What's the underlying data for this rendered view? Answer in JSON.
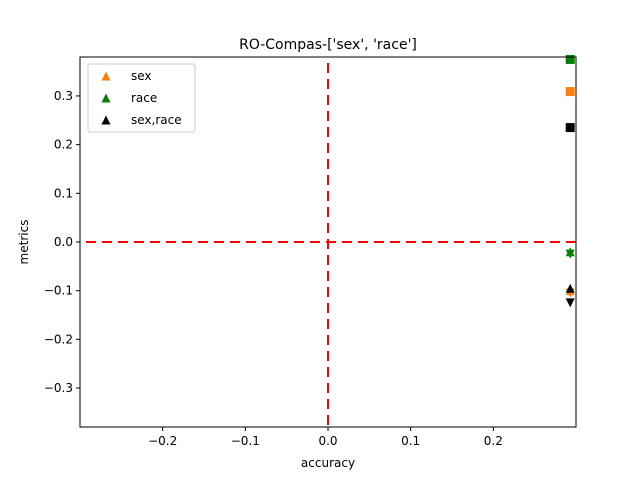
{
  "chart_data": {
    "type": "scatter",
    "title": "RO-Compas-['sex', 'race']",
    "xlabel": "accuracy",
    "ylabel": "metrics",
    "xlim": [
      -0.3,
      0.3
    ],
    "ylim": [
      -0.38,
      0.38
    ],
    "xticks": [
      -0.2,
      -0.1,
      0.0,
      0.1,
      0.2
    ],
    "xtick_labels": [
      "−0.2",
      "−0.1",
      "0.0",
      "0.1",
      "0.2"
    ],
    "yticks": [
      -0.3,
      -0.2,
      -0.1,
      0.0,
      0.1,
      0.2,
      0.3
    ],
    "ytick_labels": [
      "−0.3",
      "−0.2",
      "−0.1",
      "0.0",
      "0.1",
      "0.2",
      "0.3"
    ],
    "reference_lines": [
      {
        "orientation": "horizontal",
        "value": 0.0,
        "color": "#ff0000",
        "style": "dashed"
      },
      {
        "orientation": "vertical",
        "value": 0.0,
        "color": "#ff0000",
        "style": "dashed"
      }
    ],
    "legend": {
      "placement": "top-left",
      "entries": [
        {
          "label": "sex",
          "color": "#ff7f0e",
          "marker": "triangle-up"
        },
        {
          "label": "race",
          "color": "#008000",
          "marker": "triangle-up"
        },
        {
          "label": "sex,race",
          "color": "#000000",
          "marker": "triangle-up"
        }
      ]
    },
    "series": [
      {
        "name": "sex",
        "color": "#ff7f0e",
        "points": [
          {
            "x": 0.293,
            "y": 0.309,
            "marker": "square"
          },
          {
            "x": 0.293,
            "y": -0.1,
            "marker": "triangle-up"
          },
          {
            "x": 0.293,
            "y": -0.105,
            "marker": "triangle-down"
          }
        ]
      },
      {
        "name": "race",
        "color": "#008000",
        "points": [
          {
            "x": 0.293,
            "y": 0.375,
            "marker": "square"
          },
          {
            "x": 0.293,
            "y": -0.02,
            "marker": "triangle-up"
          },
          {
            "x": 0.293,
            "y": -0.025,
            "marker": "triangle-down"
          }
        ]
      },
      {
        "name": "sex,race",
        "color": "#000000",
        "points": [
          {
            "x": 0.293,
            "y": 0.235,
            "marker": "square"
          },
          {
            "x": 0.293,
            "y": -0.095,
            "marker": "triangle-up"
          },
          {
            "x": 0.293,
            "y": -0.125,
            "marker": "triangle-down"
          }
        ]
      }
    ]
  }
}
